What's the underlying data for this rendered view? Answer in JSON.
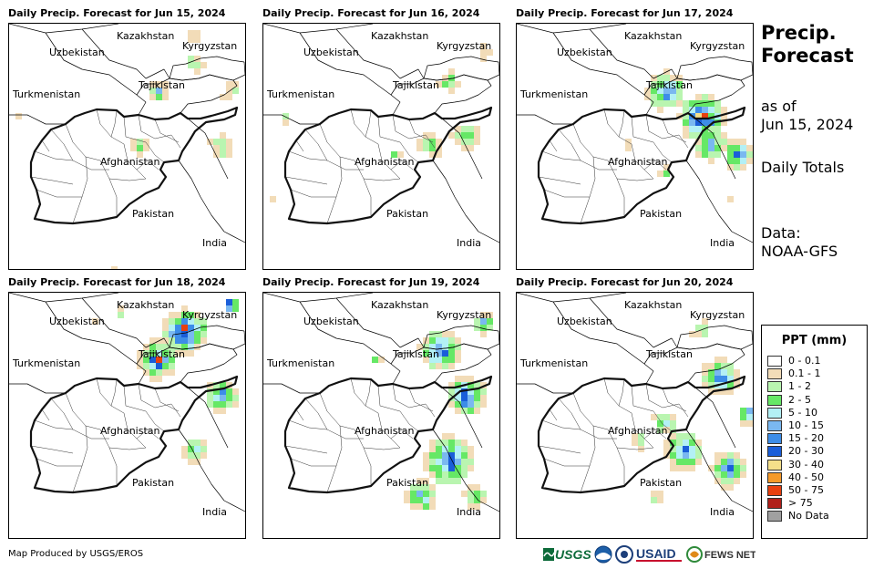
{
  "panels": [
    {
      "title": "Daily Precip. Forecast for Jun 15, 2024"
    },
    {
      "title": "Daily Precip. Forecast for Jun 16, 2024"
    },
    {
      "title": "Daily Precip. Forecast for Jun 17, 2024"
    },
    {
      "title": "Daily Precip. Forecast for Jun 18, 2024"
    },
    {
      "title": "Daily Precip. Forecast for Jun 19, 2024"
    },
    {
      "title": "Daily Precip. Forecast for Jun 20, 2024"
    }
  ],
  "country_labels": [
    "Kazakhstan",
    "Uzbekistan",
    "Kyrgyzstan",
    "Tajikistan",
    "Turkmenistan",
    "Afghanistan",
    "Pakistan",
    "India"
  ],
  "side": {
    "title_line1": "Precip.",
    "title_line2": "Forecast",
    "asof_line1": "as of",
    "asof_line2": "Jun 15, 2024",
    "totals": "Daily Totals",
    "data_line1": "Data:",
    "data_line2": "NOAA-GFS"
  },
  "legend": {
    "title": "PPT (mm)",
    "items": [
      {
        "label": "0 - 0.1",
        "color": "#ffffff"
      },
      {
        "label": "0.1 - 1",
        "color": "#f2dcb8"
      },
      {
        "label": "1 - 2",
        "color": "#b9f5b0"
      },
      {
        "label": "2 - 5",
        "color": "#66e866"
      },
      {
        "label": "5 - 10",
        "color": "#b3f0f5"
      },
      {
        "label": "10 - 15",
        "color": "#7ab8f0"
      },
      {
        "label": "15 - 20",
        "color": "#3d8de8"
      },
      {
        "label": "20 - 30",
        "color": "#1a5ed9"
      },
      {
        "label": "30 - 40",
        "color": "#f5e08a"
      },
      {
        "label": "40 - 50",
        "color": "#f59a2a"
      },
      {
        "label": "50 - 75",
        "color": "#e8400f"
      },
      {
        "label": "> 75",
        "color": "#b0201a"
      },
      {
        "label": "No Data",
        "color": "#a0a0a0"
      }
    ]
  },
  "footer": {
    "credit": "Map Produced by USGS/EROS",
    "logo_usgs": "USGS",
    "logo_usaid": "USAID",
    "logo_fewsnet": "FEWS NET"
  }
}
